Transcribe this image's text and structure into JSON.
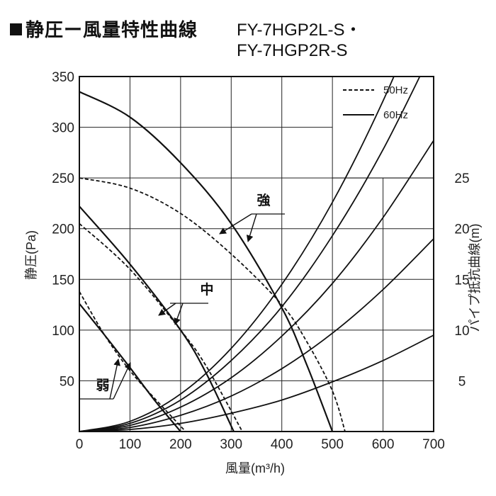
{
  "title": {
    "main": "静圧ー風量特性曲線",
    "models": [
      "FY-7HGP2L-S・",
      "FY-7HGP2R-S"
    ]
  },
  "chart_data": {
    "type": "line",
    "xlabel": "風量(m³/h)",
    "ylabel": "静圧(Pa)",
    "y2label": "パイプ抵抗曲線(m)",
    "xlim": [
      0,
      700
    ],
    "ylim": [
      0,
      350
    ],
    "y2lim": [
      0,
      35
    ],
    "x_ticks": [
      0,
      100,
      200,
      300,
      400,
      500,
      600,
      700
    ],
    "y_ticks": [
      50,
      100,
      150,
      200,
      250,
      300,
      350
    ],
    "y2_ticks": [
      5,
      10,
      15,
      20,
      25
    ],
    "grid": true,
    "legend": {
      "position": "top-right",
      "items": [
        {
          "label": "50Hz",
          "style": "dashed"
        },
        {
          "label": "60Hz",
          "style": "solid"
        }
      ]
    },
    "annotations": [
      {
        "text": "強",
        "points_to": [
          "強 50Hz",
          "強 60Hz"
        ]
      },
      {
        "text": "中",
        "points_to": [
          "中 50Hz",
          "中 60Hz"
        ]
      },
      {
        "text": "弱",
        "points_to": [
          "弱 50Hz",
          "弱 60Hz"
        ]
      }
    ],
    "series": [
      {
        "name": "強 60Hz",
        "style": "solid",
        "x": [
          0,
          100,
          200,
          300,
          400,
          450,
          500
        ],
        "y": [
          335,
          310,
          265,
          205,
          122,
          65,
          0
        ]
      },
      {
        "name": "強 50Hz",
        "style": "dashed",
        "x": [
          0,
          100,
          200,
          300,
          400,
          450,
          500,
          525
        ],
        "y": [
          250,
          240,
          215,
          175,
          125,
          88,
          40,
          0
        ]
      },
      {
        "name": "中 60Hz",
        "style": "solid",
        "x": [
          0,
          100,
          200,
          250,
          305
        ],
        "y": [
          222,
          165,
          100,
          58,
          0
        ]
      },
      {
        "name": "中 50Hz",
        "style": "dashed",
        "x": [
          0,
          100,
          200,
          250,
          322
        ],
        "y": [
          205,
          160,
          100,
          65,
          0
        ]
      },
      {
        "name": "弱 60Hz",
        "style": "solid",
        "x": [
          0,
          50,
          100,
          150,
          200
        ],
        "y": [
          126,
          95,
          63,
          30,
          0
        ]
      },
      {
        "name": "弱 50Hz",
        "style": "dashed",
        "x": [
          0,
          50,
          100,
          150,
          210
        ],
        "y": [
          138,
          95,
          60,
          32,
          0
        ]
      }
    ],
    "pipe_resistance_curves": [
      {
        "x": [
          0,
          100,
          200,
          300,
          400,
          500,
          600,
          700
        ],
        "y": [
          0,
          1,
          3.7,
          8.2,
          14.5,
          22.6,
          32.6,
          44.3
        ]
      },
      {
        "x": [
          0,
          100,
          200,
          300,
          400,
          500,
          600,
          700
        ],
        "y": [
          0,
          0.8,
          3.1,
          7.0,
          12.3,
          19.3,
          27.8,
          37.8
        ]
      },
      {
        "x": [
          0,
          100,
          200,
          300,
          400,
          500,
          600,
          700
        ],
        "y": [
          0,
          0.6,
          2.4,
          5.3,
          9.4,
          14.6,
          21.1,
          28.7
        ]
      },
      {
        "x": [
          0,
          100,
          200,
          300,
          400,
          500,
          600,
          700
        ],
        "y": [
          0,
          0.4,
          1.6,
          3.5,
          6.2,
          9.7,
          14.0,
          19.0
        ]
      },
      {
        "x": [
          0,
          100,
          200,
          300,
          400,
          500,
          600,
          700
        ],
        "y": [
          0,
          0.2,
          0.8,
          1.8,
          3.1,
          4.9,
          7.0,
          9.5
        ]
      }
    ]
  }
}
